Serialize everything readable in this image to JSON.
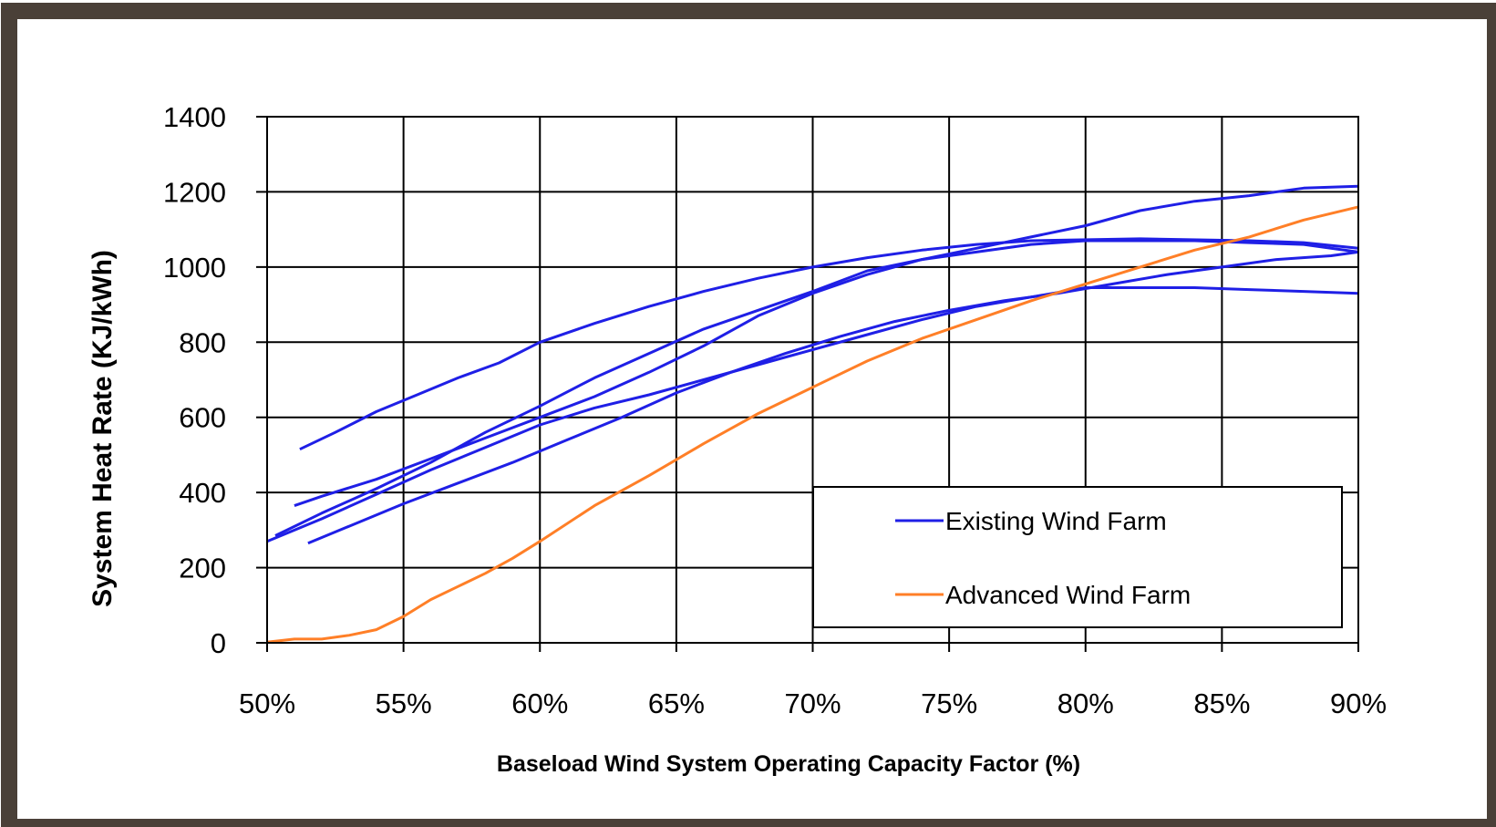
{
  "chart_data": {
    "type": "line",
    "title": "",
    "xlabel": "Baseload Wind System Operating Capacity Factor (%)",
    "ylabel": "System Heat Rate (KJ/kWh)",
    "xlim": [
      50,
      90
    ],
    "ylim": [
      0,
      1400
    ],
    "x_ticks": [
      50,
      55,
      60,
      65,
      70,
      75,
      80,
      85,
      90
    ],
    "x_tick_labels": [
      "50%",
      "55%",
      "60%",
      "65%",
      "70%",
      "75%",
      "80%",
      "85%",
      "90%"
    ],
    "y_ticks": [
      0,
      200,
      400,
      600,
      800,
      1000,
      1200,
      1400
    ],
    "y_tick_labels": [
      "0",
      "200",
      "400",
      "600",
      "800",
      "1000",
      "1200",
      "1400"
    ],
    "grid": true,
    "legend_position": "bottom-right",
    "legend": [
      {
        "label": "Existing Wind Farm",
        "color": "#1f1fe6"
      },
      {
        "label": "Advanced Wind Farm",
        "color": "#ff7f27"
      }
    ],
    "colors": {
      "existing": "#1f1fe6",
      "advanced": "#ff7f27",
      "frame": "#4a4038"
    },
    "series": [
      {
        "group": "Existing Wind Farm",
        "x": [
          51.2,
          52.5,
          54,
          55.5,
          57,
          58.5,
          60,
          62,
          64,
          66,
          68,
          70,
          72,
          74,
          76,
          78,
          82,
          86,
          88,
          90
        ],
        "y": [
          515,
          560,
          615,
          660,
          705,
          745,
          800,
          850,
          895,
          935,
          970,
          1000,
          1025,
          1045,
          1060,
          1070,
          1075,
          1070,
          1065,
          1050
        ]
      },
      {
        "group": "Existing Wind Farm",
        "x": [
          51,
          52,
          54,
          56,
          58,
          60,
          62,
          64,
          66,
          68,
          70,
          72,
          74,
          76,
          78,
          80,
          82,
          84,
          86,
          88,
          90
        ],
        "y": [
          365,
          390,
          435,
          490,
          545,
          600,
          655,
          720,
          790,
          870,
          930,
          980,
          1020,
          1050,
          1080,
          1110,
          1150,
          1175,
          1190,
          1210,
          1215
        ]
      },
      {
        "group": "Existing Wind Farm",
        "x": [
          50,
          52,
          54,
          56,
          58,
          60,
          62,
          64,
          66,
          68,
          70,
          72,
          74,
          76,
          78,
          80,
          82,
          84,
          86,
          88,
          90
        ],
        "y": [
          270,
          330,
          395,
          460,
          520,
          580,
          625,
          660,
          700,
          740,
          780,
          820,
          860,
          895,
          920,
          945,
          945,
          945,
          940,
          935,
          930
        ]
      },
      {
        "group": "Existing Wind Farm",
        "x": [
          51.5,
          53,
          55,
          57,
          59,
          61,
          63,
          65,
          67,
          69,
          71,
          73,
          75,
          77,
          79,
          81,
          83,
          85,
          87,
          89,
          90
        ],
        "y": [
          265,
          310,
          370,
          425,
          480,
          540,
          600,
          665,
          720,
          770,
          815,
          855,
          885,
          910,
          930,
          955,
          980,
          1000,
          1020,
          1030,
          1040
        ]
      },
      {
        "group": "Existing Wind Farm",
        "x": [
          50.3,
          52,
          54,
          56,
          58,
          60,
          62,
          64,
          66,
          68,
          70,
          72,
          74,
          76,
          78,
          80,
          82,
          84,
          86,
          88,
          90
        ],
        "y": [
          285,
          345,
          410,
          480,
          560,
          630,
          705,
          770,
          835,
          885,
          935,
          990,
          1020,
          1040,
          1060,
          1070,
          1070,
          1070,
          1065,
          1060,
          1040
        ]
      },
      {
        "group": "Advanced Wind Farm",
        "x": [
          50,
          51,
          52,
          53,
          54,
          55,
          56,
          57,
          58,
          59,
          60,
          62,
          64,
          66,
          68,
          70,
          72,
          74,
          76,
          78,
          80,
          82,
          84,
          86,
          88,
          90
        ],
        "y": [
          2,
          10,
          10,
          20,
          35,
          70,
          115,
          150,
          185,
          225,
          270,
          365,
          445,
          530,
          610,
          680,
          750,
          810,
          860,
          910,
          955,
          1000,
          1045,
          1080,
          1125,
          1160
        ]
      }
    ]
  }
}
